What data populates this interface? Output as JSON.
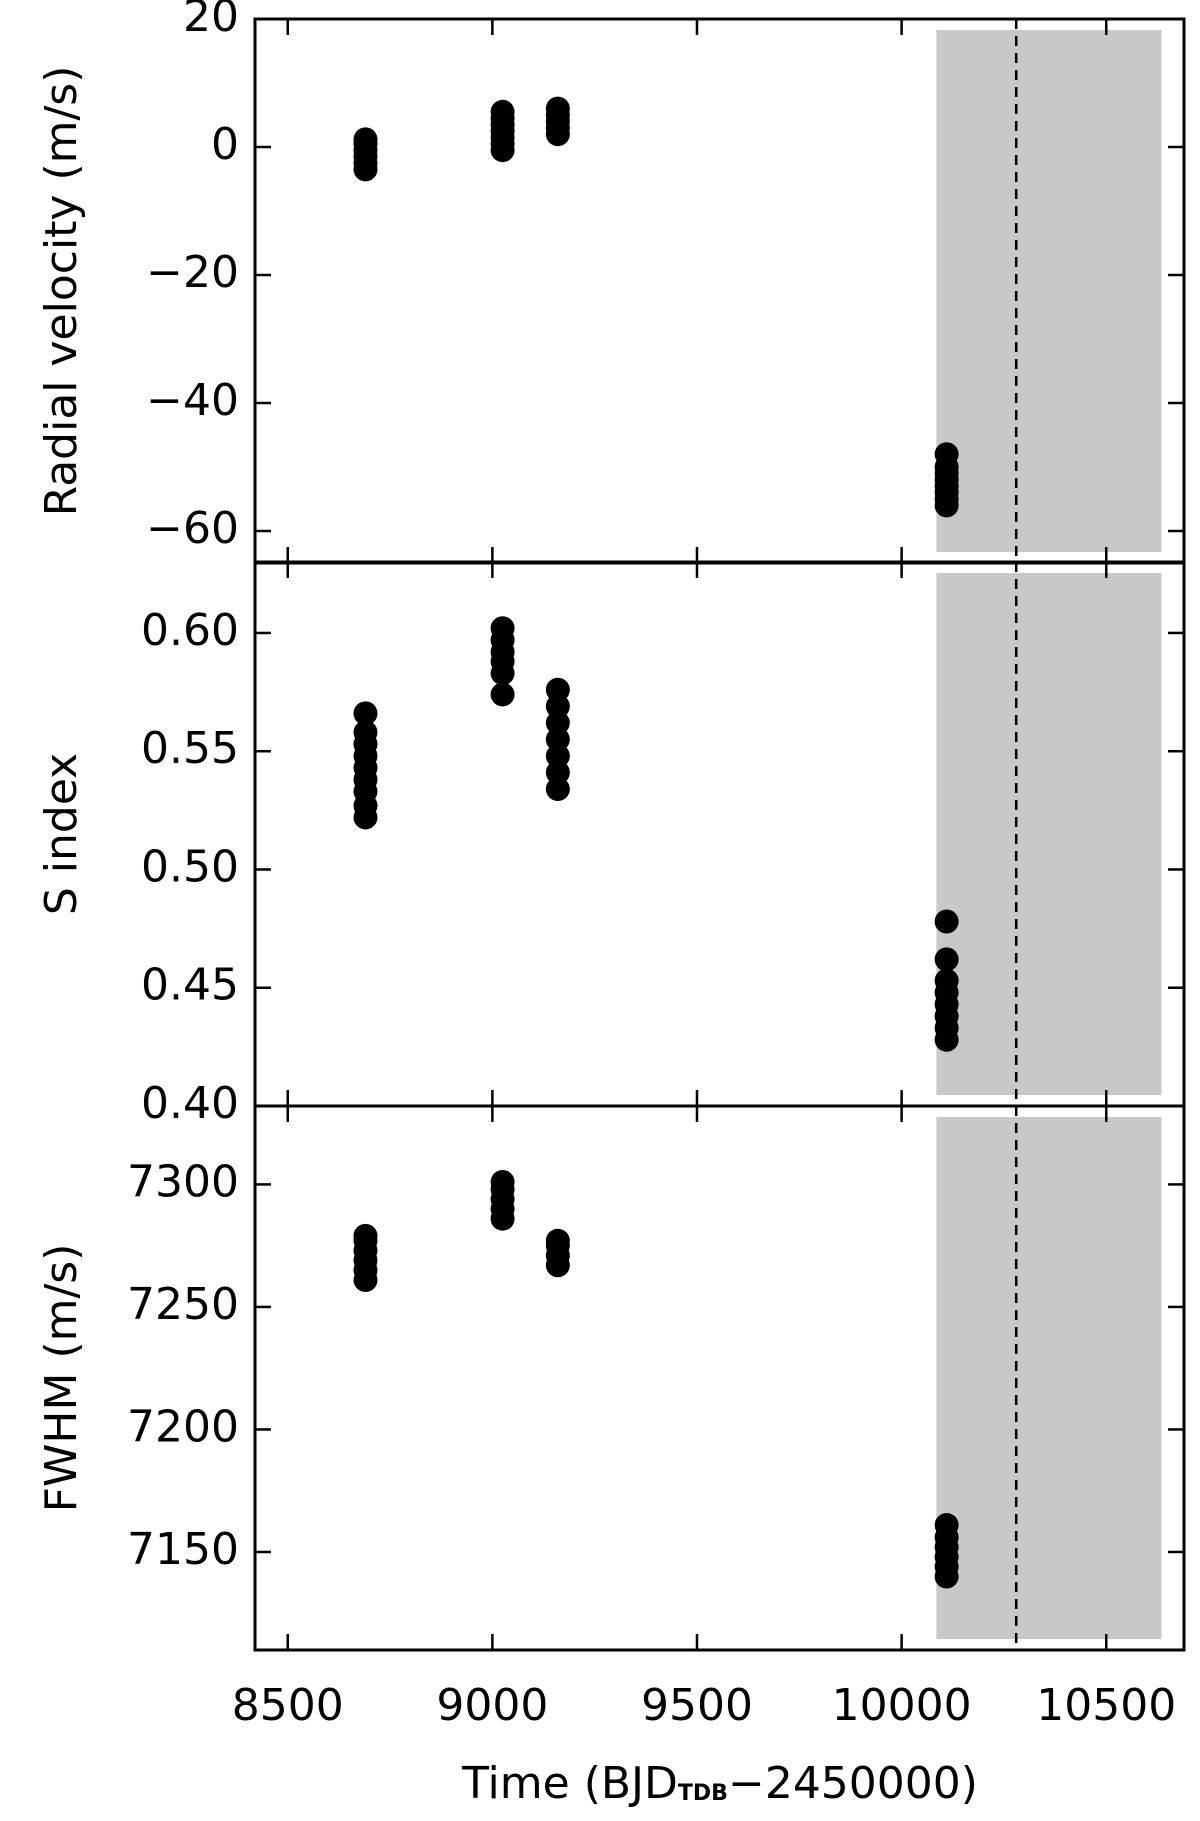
{
  "chart_data": [
    {
      "type": "scatter",
      "ylabel": "Radial velocity (m/s)",
      "color": "#000000",
      "shade_color": "#c8c8c8",
      "xlim": [
        8420,
        10690
      ],
      "ylim": [
        -65,
        20
      ],
      "yticks": [
        {
          "value": -60,
          "label": "−60"
        },
        {
          "value": -40,
          "label": "−40"
        },
        {
          "value": -20,
          "label": "−20"
        },
        0,
        20
      ],
      "shade": [
        10085,
        10635
      ],
      "vline": 10280,
      "x": [
        8690,
        8690,
        8690,
        8690,
        8690,
        8690,
        9025,
        9025,
        9025,
        9025,
        9025,
        9025,
        9025,
        9160,
        9160,
        9160,
        9160,
        9160,
        10110,
        10110,
        10110,
        10110,
        10110,
        10110,
        10110,
        10110
      ],
      "values": [
        -3.5,
        -2.5,
        -1.5,
        -0.5,
        0.5,
        1.2,
        -0.5,
        0.5,
        1.5,
        2.5,
        3.5,
        4.5,
        5.5,
        2,
        3,
        4,
        5,
        6,
        -56,
        -55,
        -54,
        -53,
        -52,
        -51,
        -50,
        -48
      ]
    },
    {
      "type": "scatter",
      "ylabel": "S index",
      "color": "#000000",
      "shade_color": "#c8c8c8",
      "xlim": [
        8420,
        10690
      ],
      "ylim": [
        0.4,
        0.63
      ],
      "yticks": [
        {
          "value": 0.4,
          "label": "0.40"
        },
        0.45,
        {
          "value": 0.5,
          "label": "0.50"
        },
        0.55,
        {
          "value": 0.6,
          "label": "0.60"
        }
      ],
      "shade": [
        10085,
        10635
      ],
      "vline": 10280,
      "x": [
        8690,
        8690,
        8690,
        8690,
        8690,
        8690,
        8690,
        8690,
        8690,
        9025,
        9025,
        9025,
        9025,
        9025,
        9025,
        9160,
        9160,
        9160,
        9160,
        9160,
        9160,
        9160,
        10110,
        10110,
        10110,
        10110,
        10110,
        10110,
        10110,
        10110
      ],
      "values": [
        0.522,
        0.527,
        0.533,
        0.538,
        0.543,
        0.548,
        0.553,
        0.558,
        0.566,
        0.574,
        0.583,
        0.588,
        0.592,
        0.597,
        0.602,
        0.534,
        0.541,
        0.548,
        0.555,
        0.562,
        0.569,
        0.576,
        0.428,
        0.433,
        0.438,
        0.443,
        0.448,
        0.453,
        0.462,
        0.478
      ]
    },
    {
      "type": "scatter",
      "ylabel": "FWHM (m/s)",
      "color": "#000000",
      "shade_color": "#c8c8c8",
      "xlim": [
        8420,
        10690
      ],
      "ylim": [
        7110,
        7332
      ],
      "yticks": [
        7150,
        7200,
        7250,
        7300
      ],
      "xticks": [
        8500,
        9000,
        9500,
        10000,
        10500
      ],
      "xlabel": {
        "main": "Time (BJD",
        "sub": "TDB",
        "tail": "−2450000)"
      },
      "shade": [
        10085,
        10635
      ],
      "vline": 10280,
      "x": [
        8690,
        8690,
        8690,
        8690,
        8690,
        8690,
        9025,
        9025,
        9025,
        9025,
        9025,
        9160,
        9160,
        9160,
        9160,
        10110,
        10110,
        10110,
        10110,
        10110,
        10110
      ],
      "values": [
        7261,
        7265,
        7269,
        7273,
        7277,
        7279,
        7286,
        7290,
        7294,
        7298,
        7301,
        7267,
        7271,
        7275,
        7277,
        7140,
        7144,
        7148,
        7152,
        7156,
        7161
      ]
    }
  ]
}
